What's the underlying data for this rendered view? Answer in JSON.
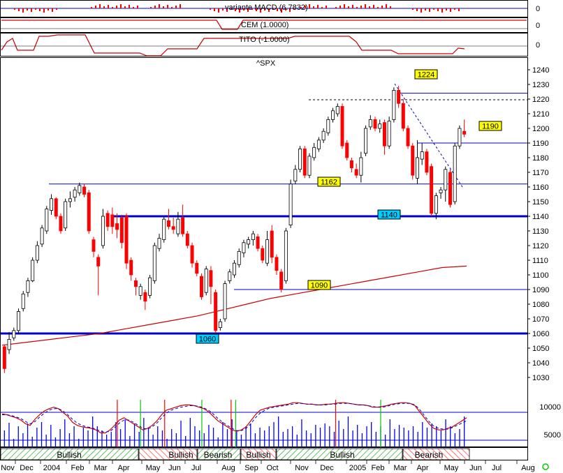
{
  "chart_data": {
    "type": "candlestick",
    "symbol": "^SPX",
    "panels": {
      "macd": {
        "label": "variante MACD (6.7832)",
        "axis_value": "0"
      },
      "cem": {
        "label": "CEM (1.0000)",
        "axis_value": "0"
      },
      "tito": {
        "label": "TITO (-1.0000)",
        "axis_value": "0"
      },
      "volume": {
        "ticks": [
          "10000",
          "5000"
        ]
      }
    },
    "y_ticks": [
      1240,
      1230,
      1220,
      1210,
      1200,
      1190,
      1180,
      1170,
      1160,
      1150,
      1140,
      1130,
      1120,
      1110,
      1100,
      1090,
      1080,
      1070,
      1060,
      1050,
      1040,
      1030
    ],
    "ylim": [
      1025,
      1248
    ],
    "x_labels": [
      "Nov",
      "Dec",
      "2004",
      "Feb",
      "Mar",
      "Apr",
      "May",
      "Jun",
      "Jul",
      "Aug",
      "Sep",
      "Oct",
      "Nov",
      "Dec",
      "2005",
      "Feb",
      "Mar",
      "Apr",
      "May",
      "Jun",
      "Jul",
      "Aug"
    ],
    "price_levels": [
      {
        "value": "1224",
        "level": 1224,
        "color": "#ffff00"
      },
      {
        "value": "1190",
        "level": 1190,
        "color": "#ffff00"
      },
      {
        "value": "1162",
        "level": 1162,
        "color": "#ffff00"
      },
      {
        "value": "1140",
        "level": 1140,
        "color": "#00ccff"
      },
      {
        "value": "1090",
        "level": 1090,
        "color": "#ffff00"
      },
      {
        "value": "1060",
        "level": 1060,
        "color": "#00ccff"
      }
    ],
    "trend_bands": [
      "Bullish",
      "Bullish",
      "Bearish",
      "Bullish",
      "Bullish",
      "Bearish"
    ],
    "candles": [
      [
        1051,
        1036,
        1052,
        1033
      ],
      [
        1049,
        1056,
        1061,
        1046
      ],
      [
        1057,
        1062,
        1064,
        1055
      ],
      [
        1062,
        1075,
        1077,
        1060
      ],
      [
        1077,
        1087,
        1089,
        1075
      ],
      [
        1088,
        1096,
        1098,
        1085
      ],
      [
        1096,
        1110,
        1112,
        1095
      ],
      [
        1110,
        1120,
        1123,
        1108
      ],
      [
        1121,
        1132,
        1134,
        1119
      ],
      [
        1130,
        1145,
        1147,
        1128
      ],
      [
        1144,
        1152,
        1155,
        1141
      ],
      [
        1152,
        1140,
        1153,
        1138
      ],
      [
        1140,
        1130,
        1142,
        1128
      ],
      [
        1132,
        1150,
        1152,
        1130
      ],
      [
        1150,
        1152,
        1157,
        1146
      ],
      [
        1153,
        1158,
        1160,
        1150
      ],
      [
        1156,
        1161,
        1163,
        1154
      ],
      [
        1160,
        1155,
        1162,
        1153
      ],
      [
        1156,
        1130,
        1158,
        1128
      ],
      [
        1124,
        1116,
        1126,
        1112
      ],
      [
        1112,
        1106,
        1114,
        1086
      ],
      [
        1120,
        1140,
        1145,
        1118
      ],
      [
        1142,
        1133,
        1144,
        1130
      ],
      [
        1141,
        1133,
        1146,
        1128
      ],
      [
        1135,
        1131,
        1142,
        1125
      ],
      [
        1139,
        1122,
        1141,
        1118
      ],
      [
        1140,
        1108,
        1142,
        1104
      ],
      [
        1110,
        1100,
        1112,
        1096
      ],
      [
        1096,
        1092,
        1098,
        1086
      ],
      [
        1086,
        1092,
        1094,
        1083
      ],
      [
        1088,
        1082,
        1090,
        1076
      ],
      [
        1086,
        1098,
        1100,
        1084
      ],
      [
        1096,
        1120,
        1122,
        1094
      ],
      [
        1118,
        1125,
        1128,
        1116
      ],
      [
        1124,
        1138,
        1140,
        1122
      ],
      [
        1137,
        1133,
        1145,
        1131
      ],
      [
        1133,
        1131,
        1139,
        1128
      ],
      [
        1128,
        1138,
        1143,
        1126
      ],
      [
        1139,
        1128,
        1148,
        1126
      ],
      [
        1128,
        1120,
        1130,
        1118
      ],
      [
        1120,
        1108,
        1122,
        1105
      ],
      [
        1108,
        1101,
        1110,
        1099
      ],
      [
        1099,
        1085,
        1101,
        1083
      ],
      [
        1088,
        1104,
        1106,
        1086
      ],
      [
        1103,
        1092,
        1106,
        1080
      ],
      [
        1088,
        1062,
        1090,
        1060
      ],
      [
        1064,
        1068,
        1070,
        1062
      ],
      [
        1070,
        1094,
        1096,
        1068
      ],
      [
        1096,
        1102,
        1104,
        1094
      ],
      [
        1100,
        1108,
        1110,
        1098
      ],
      [
        1107,
        1116,
        1118,
        1105
      ],
      [
        1115,
        1122,
        1124,
        1112
      ],
      [
        1121,
        1124,
        1126,
        1118
      ],
      [
        1124,
        1128,
        1130,
        1120
      ],
      [
        1126,
        1118,
        1128,
        1116
      ],
      [
        1118,
        1110,
        1120,
        1108
      ],
      [
        1108,
        1124,
        1130,
        1106
      ],
      [
        1130,
        1112,
        1134,
        1108
      ],
      [
        1112,
        1103,
        1114,
        1100
      ],
      [
        1102,
        1090,
        1104,
        1088
      ],
      [
        1096,
        1130,
        1132,
        1094
      ],
      [
        1134,
        1162,
        1165,
        1132
      ],
      [
        1164,
        1172,
        1175,
        1162
      ],
      [
        1172,
        1186,
        1188,
        1170
      ],
      [
        1186,
        1168,
        1188,
        1166
      ],
      [
        1168,
        1181,
        1183,
        1166
      ],
      [
        1180,
        1187,
        1190,
        1178
      ],
      [
        1186,
        1192,
        1194,
        1184
      ],
      [
        1192,
        1198,
        1200,
        1190
      ],
      [
        1197,
        1206,
        1208,
        1195
      ],
      [
        1206,
        1212,
        1214,
        1204
      ],
      [
        1210,
        1215,
        1217,
        1208
      ],
      [
        1215,
        1188,
        1217,
        1186
      ],
      [
        1190,
        1180,
        1192,
        1178
      ],
      [
        1178,
        1173,
        1180,
        1170
      ],
      [
        1172,
        1168,
        1176,
        1166
      ],
      [
        1168,
        1180,
        1184,
        1163
      ],
      [
        1183,
        1200,
        1202,
        1181
      ],
      [
        1201,
        1206,
        1209,
        1199
      ],
      [
        1206,
        1200,
        1208,
        1198
      ],
      [
        1200,
        1203,
        1206,
        1197
      ],
      [
        1204,
        1188,
        1206,
        1182
      ],
      [
        1188,
        1205,
        1208,
        1186
      ],
      [
        1206,
        1226,
        1228,
        1204
      ],
      [
        1226,
        1217,
        1229,
        1214
      ],
      [
        1217,
        1200,
        1220,
        1198
      ],
      [
        1200,
        1188,
        1202,
        1186
      ],
      [
        1188,
        1168,
        1190,
        1165
      ],
      [
        1166,
        1180,
        1192,
        1162
      ],
      [
        1179,
        1184,
        1190,
        1175
      ],
      [
        1184,
        1170,
        1186,
        1168
      ],
      [
        1174,
        1142,
        1176,
        1140
      ],
      [
        1142,
        1154,
        1156,
        1138
      ],
      [
        1156,
        1158,
        1160,
        1152
      ],
      [
        1158,
        1172,
        1174,
        1150
      ],
      [
        1170,
        1148,
        1172,
        1146
      ],
      [
        1150,
        1188,
        1190,
        1148
      ],
      [
        1188,
        1200,
        1202,
        1186
      ],
      [
        1198,
        1196,
        1206,
        1194
      ]
    ],
    "sma": [
      1052,
      1054,
      1056,
      1058,
      1060,
      1063,
      1066,
      1069,
      1072,
      1076,
      1080,
      1084,
      1087,
      1090,
      1093,
      1096,
      1099,
      1102,
      1105,
      1106
    ],
    "oscillator_main": [
      43,
      42,
      40,
      38,
      35,
      30,
      28,
      36,
      42,
      47,
      50,
      52,
      50,
      45,
      40,
      32,
      28,
      26,
      25,
      24,
      22,
      18,
      18,
      22,
      28,
      35,
      38,
      34,
      30,
      26,
      22,
      24,
      28,
      34,
      42,
      48,
      50,
      52,
      54,
      55,
      55,
      54,
      52,
      50,
      46,
      40,
      34,
      30,
      26,
      22,
      20,
      22,
      26,
      34,
      42,
      48,
      50,
      52,
      53,
      54,
      55,
      56,
      58,
      58,
      57,
      56,
      56,
      55,
      55,
      56,
      56,
      57,
      58,
      58,
      57,
      56,
      55,
      55,
      54,
      52,
      52,
      53,
      54,
      56,
      57,
      58,
      58,
      57,
      54,
      46,
      38,
      30,
      24,
      22,
      22,
      24,
      26,
      30,
      34,
      38
    ],
    "oscillator_signal": [
      42,
      42,
      41,
      39,
      37,
      33,
      30,
      33,
      39,
      44,
      48,
      50,
      50,
      47,
      42,
      36,
      31,
      28,
      26,
      25,
      23,
      20,
      19,
      20,
      25,
      31,
      35,
      35,
      32,
      28,
      24,
      23,
      26,
      31,
      38,
      44,
      48,
      50,
      52,
      53,
      54,
      54,
      53,
      51,
      48,
      43,
      37,
      32,
      28,
      24,
      21,
      21,
      24,
      30,
      38,
      44,
      48,
      51,
      52,
      53,
      54,
      55,
      56,
      57,
      57,
      56,
      56,
      55,
      55,
      55,
      56,
      56,
      57,
      57,
      57,
      56,
      55,
      55,
      54,
      53,
      52,
      52,
      53,
      55,
      56,
      57,
      57,
      57,
      55,
      49,
      41,
      33,
      27,
      24,
      23,
      23,
      25,
      28,
      31,
      34
    ],
    "volume_bars": [
      24,
      35,
      12,
      30,
      20,
      34,
      15,
      28,
      36,
      18,
      32,
      14,
      26,
      40,
      20,
      30,
      12,
      28,
      24,
      44,
      30,
      24,
      18,
      22,
      36,
      26,
      40,
      16,
      34,
      22,
      42,
      28,
      18,
      30,
      24,
      12,
      26,
      20,
      38,
      16,
      42,
      30,
      24,
      20,
      32,
      28,
      14,
      36,
      26,
      40,
      22,
      18,
      30,
      34,
      20,
      28,
      24,
      30,
      36,
      44,
      22,
      26,
      30,
      18,
      40,
      24,
      20,
      32,
      28,
      34,
      30,
      22,
      38,
      26,
      44,
      24,
      32,
      20,
      30,
      36,
      22,
      30,
      18,
      40,
      26,
      32,
      28,
      24,
      30,
      22,
      36,
      28,
      34,
      30,
      24,
      40,
      30,
      20,
      26,
      44
    ],
    "signal_markers": [
      {
        "pos": 0.248,
        "color": "#ff0000"
      },
      {
        "pos": 0.298,
        "color": "#00cc00"
      },
      {
        "pos": 0.35,
        "color": "#ff0000"
      },
      {
        "pos": 0.43,
        "color": "#00cc00"
      },
      {
        "pos": 0.493,
        "color": "#ff0000"
      },
      {
        "pos": 0.503,
        "color": "#00cc00"
      },
      {
        "pos": 0.718,
        "color": "#ff0000"
      },
      {
        "pos": 0.815,
        "color": "#00cc00"
      }
    ],
    "colors": {
      "up": "#ffffff",
      "down": "#ff0000",
      "support": "#0000cc",
      "sma": "#cc0000",
      "osc_main": "#cc0000",
      "osc_signal": "#0000cc",
      "volume": "#0000ff",
      "bull_hatch": "#00aa00",
      "bear_hatch": "#ff0000"
    }
  }
}
